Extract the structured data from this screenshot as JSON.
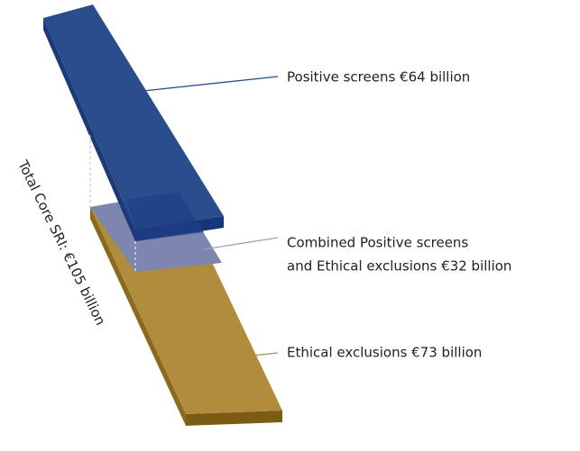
{
  "total_label": "Total Core SRI: €105 billion",
  "segments": [
    {
      "label_lines": [
        "Positive screens €64 billion"
      ]
    },
    {
      "label_lines": [
        "Combined Positive screens",
        "and Ethical exclusions €32 billion"
      ]
    },
    {
      "label_lines": [
        "Ethical exclusions €73 billion"
      ]
    }
  ]
}
